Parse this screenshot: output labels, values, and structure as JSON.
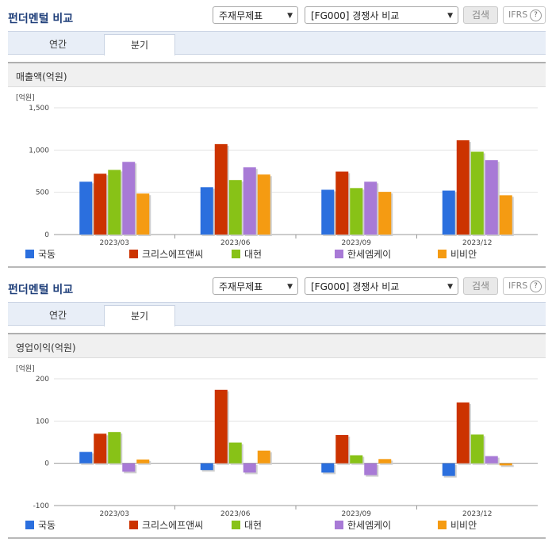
{
  "panels": [
    {
      "title": "펀더멘털 비교",
      "select1": "주재무제표",
      "select2": "[FG000] 경쟁사 비교",
      "search_label": "검색",
      "ifrs_label": "IFRS",
      "ifrs_help": "?",
      "tabs": [
        "연간",
        "분기"
      ],
      "active_tab": 1,
      "metric": "매출액(억원)",
      "unit_label": "[억원]"
    },
    {
      "title": "펀더멘털 비교",
      "select1": "주재무제표",
      "select2": "[FG000] 경쟁사 비교",
      "search_label": "검색",
      "ifrs_label": "IFRS",
      "ifrs_help": "?",
      "tabs": [
        "연간",
        "분기"
      ],
      "active_tab": 1,
      "metric": "영업이익(억원)",
      "unit_label": "[억원]"
    }
  ],
  "colors": {
    "series": [
      "#2b6fde",
      "#cc3300",
      "#88c217",
      "#a87ad6",
      "#f59b12"
    ]
  },
  "chart_data": [
    {
      "type": "bar",
      "title": "매출액(억원)",
      "ylabel": "[억원]",
      "categories": [
        "2023/03",
        "2023/06",
        "2023/09",
        "2023/12"
      ],
      "ylim": [
        0,
        1500
      ],
      "yticks": [
        0,
        500,
        1000,
        1500
      ],
      "ytick_labels": [
        "0",
        "500",
        "1,000",
        "1,500"
      ],
      "grid": true,
      "legend": "bottom",
      "series": [
        {
          "name": "국동",
          "values": [
            625,
            560,
            530,
            520
          ]
        },
        {
          "name": "크리스에프앤씨",
          "values": [
            720,
            1070,
            745,
            1115
          ]
        },
        {
          "name": "대현",
          "values": [
            765,
            645,
            550,
            980
          ]
        },
        {
          "name": "한세엠케이",
          "values": [
            860,
            795,
            625,
            880
          ]
        },
        {
          "name": "비비안",
          "values": [
            485,
            710,
            505,
            465
          ]
        }
      ]
    },
    {
      "type": "bar",
      "title": "영업이익(억원)",
      "ylabel": "[억원]",
      "categories": [
        "2023/03",
        "2023/06",
        "2023/09",
        "2023/12"
      ],
      "ylim": [
        -100,
        200
      ],
      "yticks": [
        -100,
        0,
        100,
        200
      ],
      "ytick_labels": [
        "-100",
        "0",
        "100",
        "200"
      ],
      "grid": true,
      "legend": "bottom",
      "series": [
        {
          "name": "국동",
          "values": [
            27,
            -16,
            -22,
            -30
          ]
        },
        {
          "name": "크리스에프앤씨",
          "values": [
            70,
            174,
            67,
            144
          ]
        },
        {
          "name": "대현",
          "values": [
            74,
            49,
            19,
            68
          ]
        },
        {
          "name": "한세엠케이",
          "values": [
            -20,
            -22,
            -28,
            17
          ]
        },
        {
          "name": "비비안",
          "values": [
            9,
            30,
            10,
            -5
          ]
        }
      ]
    }
  ]
}
